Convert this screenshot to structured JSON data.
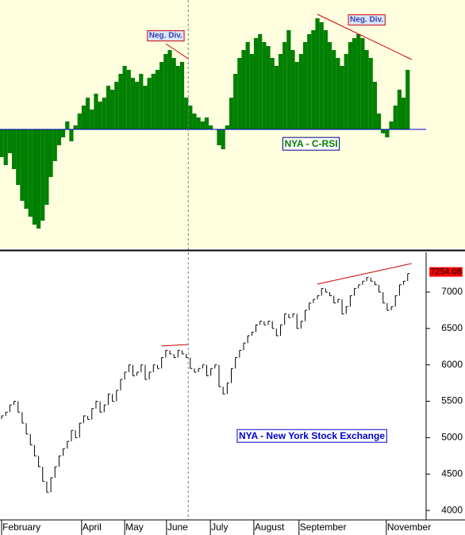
{
  "chart_data": [
    {
      "type": "bar",
      "annotation": "NYA - C-RSI",
      "notes": [
        {
          "text": "Neg. Div.",
          "x": 40,
          "y": 118
        },
        {
          "text": "Neg. Div.",
          "x": 89,
          "y": 138
        }
      ],
      "color": "#008000",
      "zero_color": "#0000cc",
      "background": "#ffffe0",
      "xlim": [
        -0.4,
        103.5
      ],
      "ylim": [
        -150,
        163
      ],
      "values": [
        -35,
        -45,
        -30,
        -50,
        -70,
        -90,
        -100,
        -110,
        -120,
        -125,
        -115,
        -95,
        -60,
        -40,
        -20,
        -10,
        10,
        -15,
        5,
        20,
        30,
        40,
        25,
        45,
        35,
        40,
        55,
        50,
        60,
        70,
        80,
        75,
        65,
        60,
        70,
        55,
        65,
        70,
        75,
        85,
        95,
        100,
        90,
        80,
        85,
        40,
        30,
        20,
        15,
        10,
        15,
        5,
        0,
        -20,
        -25,
        5,
        40,
        70,
        90,
        100,
        110,
        95,
        115,
        120,
        110,
        105,
        90,
        80,
        95,
        110,
        125,
        100,
        85,
        95,
        110,
        120,
        125,
        140,
        135,
        125,
        110,
        100,
        90,
        80,
        95,
        110,
        115,
        120,
        115,
        100,
        90,
        60,
        20,
        -5,
        -10,
        10,
        30,
        50,
        40,
        75
      ],
      "trendlines": [
        {
          "x": [
            40,
            45.5
          ],
          "y": [
            108,
            89
          ],
          "color": "#cc0000"
        },
        {
          "x": [
            77,
            100
          ],
          "y": [
            145,
            88
          ],
          "color": "#cc0000"
        }
      ]
    },
    {
      "type": "hlc",
      "annotation": "NYA - New York Stock Exchange",
      "color": "#000000",
      "last_color": "#ff0000",
      "xlim": [
        -0.4,
        103.5
      ],
      "ylim": [
        3870,
        7545
      ],
      "yticks": [
        4000,
        4500,
        5000,
        5500,
        6000,
        6500,
        7000
      ],
      "xticks": [
        {
          "value": 0,
          "label": "February"
        },
        {
          "value": 19.5,
          "label": "April"
        },
        {
          "value": 30,
          "label": "May"
        },
        {
          "value": 40.2,
          "label": "June"
        },
        {
          "value": 50.9,
          "label": "July"
        },
        {
          "value": 61.5,
          "label": "August"
        },
        {
          "value": 72.5,
          "label": "September"
        },
        {
          "value": 93.8,
          "label": "November"
        }
      ],
      "cursor_x": 45.5,
      "values": [
        5300,
        5350,
        5450,
        5500,
        5350,
        5200,
        5050,
        4900,
        4750,
        4600,
        4400,
        4250,
        4450,
        4600,
        4750,
        4850,
        4950,
        5100,
        5000,
        5200,
        5300,
        5250,
        5400,
        5500,
        5350,
        5450,
        5600,
        5500,
        5650,
        5800,
        5900,
        6000,
        5850,
        5900,
        6000,
        5800,
        5900,
        6000,
        5950,
        6100,
        6200,
        6150,
        6100,
        6200,
        6150,
        6100,
        5950,
        5900,
        5950,
        6000,
        5850,
        5950,
        6000,
        5700,
        5600,
        5750,
        5950,
        6100,
        6200,
        6300,
        6400,
        6450,
        6550,
        6600,
        6550,
        6600,
        6500,
        6400,
        6550,
        6700,
        6650,
        6700,
        6500,
        6600,
        6750,
        6850,
        6900,
        6950,
        7050,
        7000,
        6950,
        6850,
        6900,
        6700,
        6800,
        6950,
        7050,
        7100,
        7150,
        7200,
        7150,
        7100,
        7000,
        6850,
        6750,
        6800,
        6950,
        7100,
        7150,
        7254.08
      ],
      "trendlines": [
        {
          "x": [
            39,
            45.5
          ],
          "y": [
            6260,
            6280
          ],
          "color": "#cc0000"
        },
        {
          "x": [
            77,
            100
          ],
          "y": [
            7110,
            7393
          ],
          "color": "#cc0000"
        }
      ]
    }
  ]
}
